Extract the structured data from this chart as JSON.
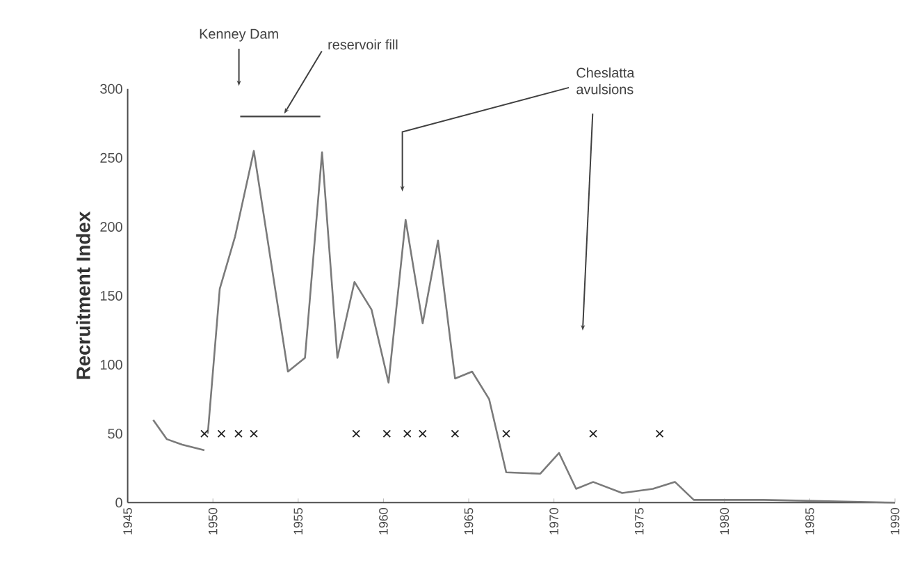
{
  "chart_data": {
    "type": "line",
    "ylabel": "Recruitment Index",
    "xlim": [
      1945,
      1990
    ],
    "ylim": [
      0,
      300
    ],
    "xticks": [
      1945,
      1950,
      1955,
      1960,
      1965,
      1970,
      1975,
      1980,
      1985,
      1990
    ],
    "yticks": [
      0,
      50,
      100,
      150,
      200,
      250,
      300
    ],
    "grid": false,
    "series": [
      {
        "color": "#7a7a7a",
        "marker": "none",
        "x": [
          1946.5,
          1947.3,
          1948.2,
          1949.5
        ],
        "values": [
          60,
          46,
          42,
          38
        ]
      },
      {
        "color": "#7a7a7a",
        "marker": "none",
        "x": [
          1949.7,
          1950.4,
          1951.3,
          1952.4,
          1954.4,
          1955.4,
          1956.4,
          1957.3,
          1958.3,
          1959.3,
          1960.3,
          1961.3,
          1962.3,
          1963.2,
          1964.2,
          1965.2,
          1966.2,
          1967.2,
          1969.2,
          1970.3,
          1971.3,
          1972.3,
          1974,
          1975.8,
          1977.1,
          1978.2,
          1982.3,
          1990
        ],
        "values": [
          50,
          155,
          193,
          255,
          95,
          105,
          254,
          105,
          160,
          140,
          87,
          205,
          130,
          190,
          90,
          95,
          75,
          22,
          21,
          36,
          10,
          15,
          7,
          10,
          15,
          2,
          2,
          0
        ]
      },
      {
        "type": "scatter",
        "color": "#222222",
        "marker": "cross",
        "x": [
          1949.5,
          1950.5,
          1951.5,
          1952.4,
          1958.4,
          1960.2,
          1961.4,
          1962.3,
          1964.2,
          1967.2,
          1972.3,
          1976.2
        ],
        "values": [
          50,
          50,
          50,
          50,
          50,
          50,
          50,
          50,
          50,
          50,
          50,
          50
        ]
      },
      {
        "name": "reservoir fill",
        "color": "#404040",
        "marker": "none",
        "x": [
          1951.6,
          1956.3
        ],
        "values": [
          280,
          280
        ]
      }
    ],
    "annotations": [
      "Kenney Dam",
      "Cheslatta avulsions"
    ]
  }
}
